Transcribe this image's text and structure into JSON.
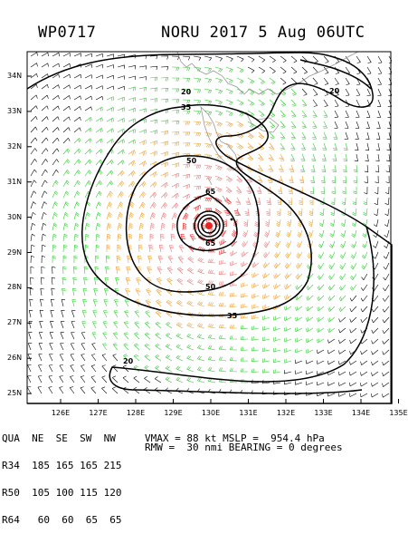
{
  "title": {
    "storm_id": "WP0717",
    "storm_name_year": "NORU 2017",
    "date_time": "5 Aug 06UTC"
  },
  "map": {
    "lat_ticks": [
      "34N",
      "33N",
      "32N",
      "31N",
      "30N",
      "29N",
      "28N",
      "27N",
      "26N",
      "25N"
    ],
    "lon_ticks": [
      "126E",
      "127E",
      "128E",
      "129E",
      "130E",
      "131E",
      "132E",
      "133E",
      "134E",
      "135E"
    ],
    "contour_labels": {
      "outer_20_north": "20",
      "outer_20_ne": "20",
      "outer_20_south": "20",
      "ring_35_north": "35",
      "ring_35_south": "35",
      "ring_50_north": "50",
      "ring_50_south": "50",
      "ring_65_north": "65",
      "ring_65_south": "65"
    },
    "colors": {
      "wind_20_34kt": "#33cc33",
      "wind_34_50kt": "#f0a030",
      "wind_50_64kt": "#e87a7a",
      "wind_64plus": "#ee2222",
      "coast": "#999999",
      "contour": "#000000"
    }
  },
  "radii_table": {
    "header": [
      "QUA",
      "NE",
      "SE",
      "SW",
      "NW"
    ],
    "rows": [
      {
        "label": "R34",
        "values": [
          "185",
          "165",
          "165",
          "215"
        ]
      },
      {
        "label": "R50",
        "values": [
          "105",
          "100",
          "115",
          "120"
        ]
      },
      {
        "label": "R64",
        "values": [
          "60",
          "60",
          "65",
          "65"
        ]
      }
    ]
  },
  "stats": {
    "vmax_label": "VMAX =",
    "vmax_value": "88 kt",
    "mslp_label": "MSLP =",
    "mslp_value": "954.4 hPa",
    "rmw_label": "RMW =",
    "rmw_value": "30 nmi",
    "bearing_label": "BEARING =",
    "bearing_value": "0 degrees"
  }
}
